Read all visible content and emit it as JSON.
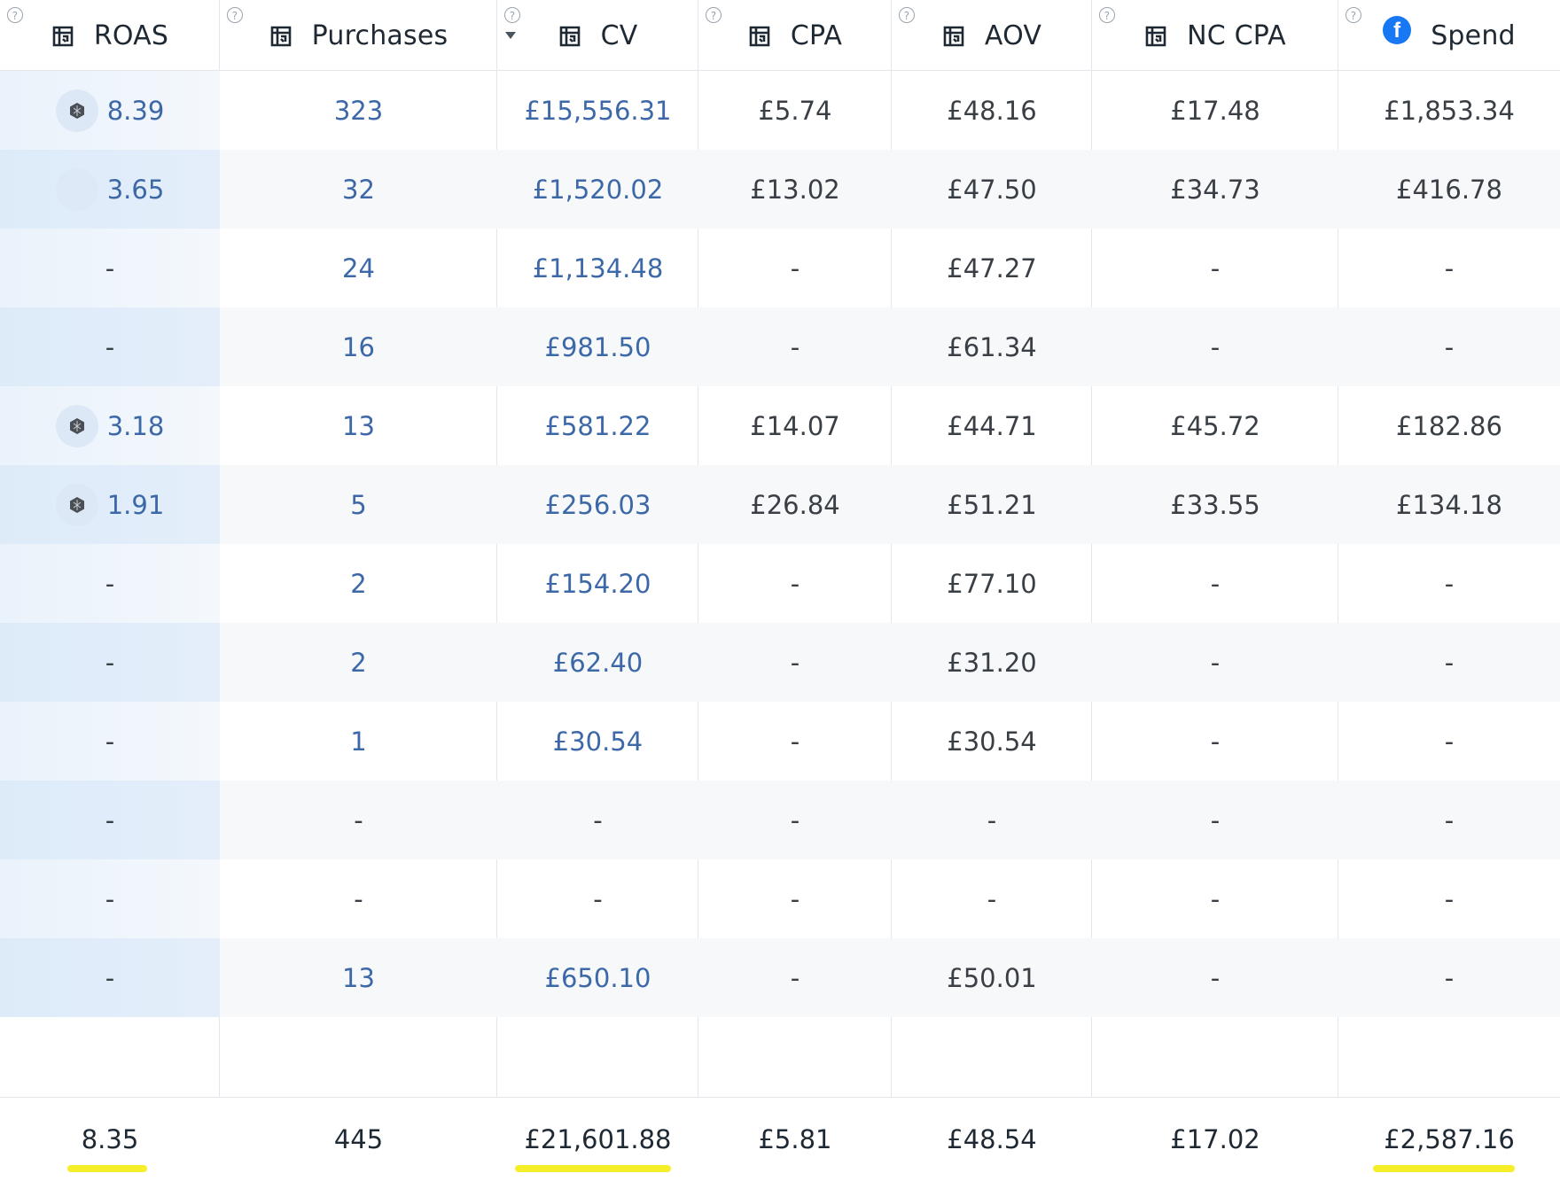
{
  "columns": [
    {
      "key": "roas",
      "label": "ROAS",
      "icon": "attribution-source-icon"
    },
    {
      "key": "purchases",
      "label": "Purchases",
      "icon": "attribution-source-icon"
    },
    {
      "key": "cv",
      "label": "CV",
      "icon": "attribution-source-icon",
      "sorted": "desc"
    },
    {
      "key": "cpa",
      "label": "CPA",
      "icon": "attribution-source-icon"
    },
    {
      "key": "aov",
      "label": "AOV",
      "icon": "attribution-source-icon"
    },
    {
      "key": "nccpa",
      "label": "NC CPA",
      "icon": "attribution-source-icon"
    },
    {
      "key": "spend",
      "label": "Spend",
      "icon": "facebook-icon"
    }
  ],
  "help_glyph": "?",
  "facebook_glyph": "f",
  "rows": [
    {
      "roas": "8.39",
      "badge": "hex",
      "purchases": "323",
      "cv": "£15,556.31",
      "cpa": "£5.74",
      "aov": "£48.16",
      "nccpa": "£17.48",
      "spend": "£1,853.34"
    },
    {
      "roas": "3.65",
      "badge": "empty",
      "purchases": "32",
      "cv": "£1,520.02",
      "cpa": "£13.02",
      "aov": "£47.50",
      "nccpa": "£34.73",
      "spend": "£416.78"
    },
    {
      "roas": "-",
      "badge": "none",
      "purchases": "24",
      "cv": "£1,134.48",
      "cpa": "-",
      "aov": "£47.27",
      "nccpa": "-",
      "spend": "-"
    },
    {
      "roas": "-",
      "badge": "none",
      "purchases": "16",
      "cv": "£981.50",
      "cpa": "-",
      "aov": "£61.34",
      "nccpa": "-",
      "spend": "-"
    },
    {
      "roas": "3.18",
      "badge": "hex",
      "purchases": "13",
      "cv": "£581.22",
      "cpa": "£14.07",
      "aov": "£44.71",
      "nccpa": "£45.72",
      "spend": "£182.86"
    },
    {
      "roas": "1.91",
      "badge": "hex",
      "purchases": "5",
      "cv": "£256.03",
      "cpa": "£26.84",
      "aov": "£51.21",
      "nccpa": "£33.55",
      "spend": "£134.18"
    },
    {
      "roas": "-",
      "badge": "none",
      "purchases": "2",
      "cv": "£154.20",
      "cpa": "-",
      "aov": "£77.10",
      "nccpa": "-",
      "spend": "-"
    },
    {
      "roas": "-",
      "badge": "none",
      "purchases": "2",
      "cv": "£62.40",
      "cpa": "-",
      "aov": "£31.20",
      "nccpa": "-",
      "spend": "-"
    },
    {
      "roas": "-",
      "badge": "none",
      "purchases": "1",
      "cv": "£30.54",
      "cpa": "-",
      "aov": "£30.54",
      "nccpa": "-",
      "spend": "-"
    },
    {
      "roas": "-",
      "badge": "none",
      "purchases": "-",
      "cv": "-",
      "cpa": "-",
      "aov": "-",
      "nccpa": "-",
      "spend": "-"
    },
    {
      "roas": "-",
      "badge": "none",
      "purchases": "-",
      "cv": "-",
      "cpa": "-",
      "aov": "-",
      "nccpa": "-",
      "spend": "-"
    },
    {
      "roas": "-",
      "badge": "none",
      "purchases": "13",
      "cv": "£650.10",
      "cpa": "-",
      "aov": "£50.01",
      "nccpa": "-",
      "spend": "-"
    }
  ],
  "totals": {
    "roas": "8.35",
    "purchases": "445",
    "cv": "£21,601.88",
    "cpa": "£5.81",
    "aov": "£48.54",
    "nccpa": "£17.02",
    "spend": "£2,587.16"
  },
  "highlighted_totals": [
    "roas",
    "cv",
    "spend"
  ],
  "colors": {
    "link": "#3d68a8",
    "highlight": "#f7ee2a",
    "facebook": "#1877f2"
  }
}
